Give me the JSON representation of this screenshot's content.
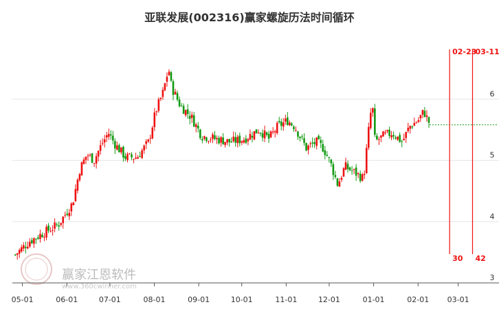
{
  "chart_data": {
    "type": "candlestick",
    "title": "亚联发展(002316)赢家螺旋历法时间循环",
    "ylim": [
      3.0,
      7.0
    ],
    "y_ticks": [
      3,
      4,
      5,
      6
    ],
    "y_tick_labels": [
      "3",
      "4",
      "5",
      "6"
    ],
    "x_ticks": [
      "05-01",
      "06-01",
      "07-01",
      "08-01",
      "09-01",
      "10-01",
      "11-01",
      "12-01",
      "01-01",
      "02-01",
      "03-01"
    ],
    "x_tick_days": [
      0,
      31,
      61,
      92,
      123,
      153,
      184,
      214,
      245,
      276,
      304
    ],
    "day_range": [
      -7,
      320
    ],
    "price_anchors": [
      [
        -5,
        3.46
      ],
      [
        5,
        3.68
      ],
      [
        15,
        3.82
      ],
      [
        25,
        3.95
      ],
      [
        35,
        4.3
      ],
      [
        40,
        4.85
      ],
      [
        45,
        5.1
      ],
      [
        50,
        5.0
      ],
      [
        55,
        5.25
      ],
      [
        60,
        5.45
      ],
      [
        65,
        5.25
      ],
      [
        72,
        5.05
      ],
      [
        80,
        5.05
      ],
      [
        88,
        5.3
      ],
      [
        93,
        5.8
      ],
      [
        98,
        6.1
      ],
      [
        102,
        6.5
      ],
      [
        104,
        6.2
      ],
      [
        110,
        5.9
      ],
      [
        118,
        5.7
      ],
      [
        125,
        5.4
      ],
      [
        135,
        5.35
      ],
      [
        145,
        5.3
      ],
      [
        155,
        5.35
      ],
      [
        165,
        5.5
      ],
      [
        172,
        5.35
      ],
      [
        178,
        5.55
      ],
      [
        185,
        5.65
      ],
      [
        190,
        5.55
      ],
      [
        198,
        5.2
      ],
      [
        205,
        5.3
      ],
      [
        210,
        5.2
      ],
      [
        215,
        4.95
      ],
      [
        220,
        4.6
      ],
      [
        225,
        4.9
      ],
      [
        232,
        4.8
      ],
      [
        238,
        4.7
      ],
      [
        242,
        5.6
      ],
      [
        244,
        5.95
      ],
      [
        246,
        5.3
      ],
      [
        252,
        5.4
      ],
      [
        258,
        5.45
      ],
      [
        265,
        5.3
      ],
      [
        270,
        5.55
      ],
      [
        276,
        5.65
      ],
      [
        280,
        5.8
      ],
      [
        284,
        5.6
      ]
    ],
    "last_close": 5.58,
    "last_day": 284,
    "cycle_lines": [
      {
        "date": "02-23",
        "count": "30",
        "day": 298
      },
      {
        "date": "03-11",
        "count": "42",
        "day": 314
      }
    ],
    "colors": {
      "up": "#ee1111",
      "down": "#119911",
      "cycle": "#ee1111",
      "last": "#119911"
    }
  },
  "watermark": {
    "logo_text": "赢家江恩软件",
    "url_text": "www.360cwinner.com",
    "seal_text": "赢家"
  }
}
